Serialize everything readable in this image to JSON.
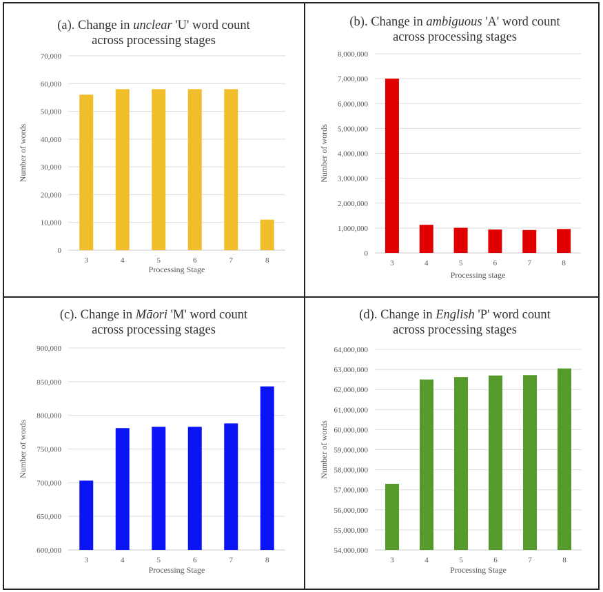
{
  "chart_data": [
    {
      "type": "bar",
      "title_prefix": "(a). Change in",
      "title_italic": "unclear",
      "title_suffix": "'U' word count",
      "title_line2": "across processing stages",
      "xlabel": "Processing Stage",
      "ylabel": "Number of words",
      "categories": [
        "3",
        "4",
        "5",
        "6",
        "7",
        "8"
      ],
      "values": [
        56000,
        58000,
        58000,
        58000,
        58000,
        11000
      ],
      "ylim": [
        0,
        70000
      ],
      "yticks": [
        "0",
        "10,000",
        "20,000",
        "30,000",
        "40,000",
        "50,000",
        "60,000",
        "70,000"
      ],
      "color": "#F0BE2B",
      "grid": true
    },
    {
      "type": "bar",
      "title_prefix": "(b). Change in",
      "title_italic": "ambiguous",
      "title_suffix": "'A' word count",
      "title_line2": "across processing stages",
      "xlabel": "Processing stage",
      "ylabel": "Number of words",
      "categories": [
        "3",
        "4",
        "5",
        "6",
        "7",
        "8"
      ],
      "values": [
        7000000,
        1130000,
        1010000,
        940000,
        920000,
        960000
      ],
      "ylim": [
        0,
        8000000
      ],
      "yticks": [
        "0",
        "1,000,000",
        "2,000,000",
        "3,000,000",
        "4,000,000",
        "5,000,000",
        "6,000,000",
        "7,000,000",
        "8,000,000"
      ],
      "color": "#E00000",
      "grid": true
    },
    {
      "type": "bar",
      "title_prefix": "(c). Change in",
      "title_italic": "Māori",
      "title_suffix": "'M' word count",
      "title_line2": "across processing stages",
      "xlabel": "Processing Stage",
      "ylabel": "Number of words",
      "categories": [
        "3",
        "4",
        "5",
        "6",
        "7",
        "8"
      ],
      "values": [
        703000,
        781000,
        783000,
        783000,
        788000,
        843000
      ],
      "ylim": [
        600000,
        900000
      ],
      "yticks": [
        "600,000",
        "650,000",
        "700,000",
        "750,000",
        "800,000",
        "850,000",
        "900,000"
      ],
      "color": "#0A14F5",
      "grid": true
    },
    {
      "type": "bar",
      "title_prefix": "(d). Change in",
      "title_italic": "English",
      "title_suffix": "'P' word count",
      "title_line2": "across processing stages",
      "xlabel": "Processing Stage",
      "ylabel": "Number of words",
      "categories": [
        "3",
        "4",
        "5",
        "6",
        "7",
        "8"
      ],
      "values": [
        57300000,
        62500000,
        62620000,
        62700000,
        62720000,
        63050000
      ],
      "ylim": [
        54000000,
        64000000
      ],
      "yticks": [
        "54,000,000",
        "55,000,000",
        "56,000,000",
        "57,000,000",
        "58,000,000",
        "59,000,000",
        "60,000,000",
        "61,000,000",
        "62,000,000",
        "63,000,000",
        "64,000,000"
      ],
      "color": "#559A2A",
      "grid": true
    }
  ]
}
